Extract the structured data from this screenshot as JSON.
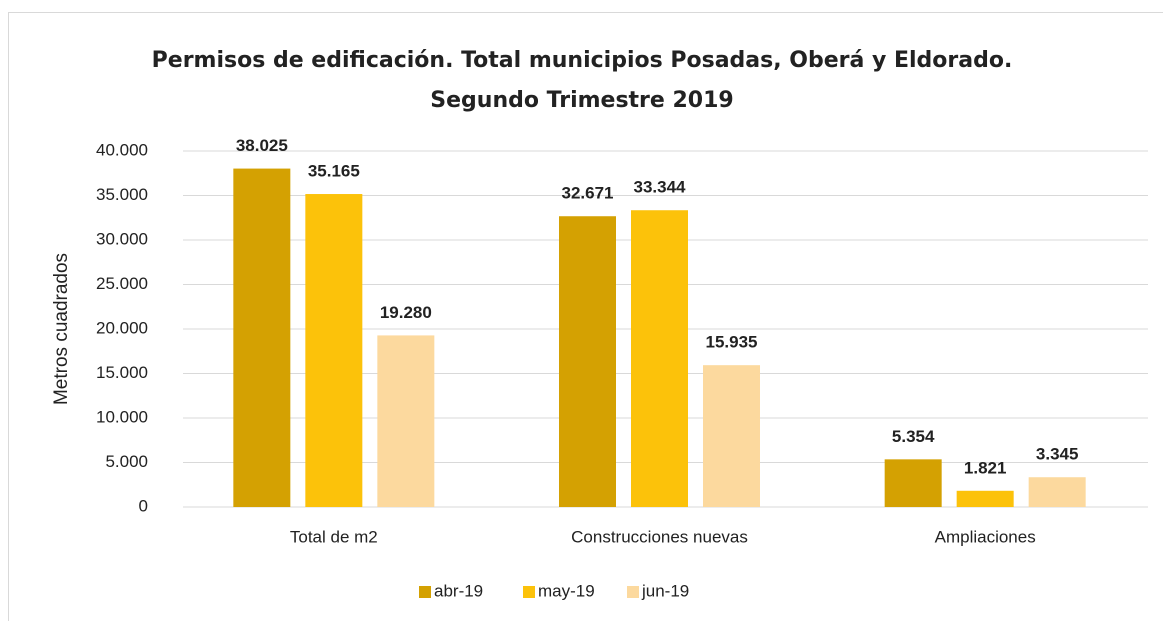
{
  "chart_data": {
    "type": "bar",
    "title": [
      "Permisos de edificación. Total municipios Posadas, Oberá y Eldorado.",
      "Segundo Trimestre 2019"
    ],
    "y_label": "Metros cuadrados",
    "categories": [
      "Total de m2",
      "Construcciones nuevas",
      "Ampliaciones"
    ],
    "series": [
      {
        "name": "abr-19",
        "color": "#d4a102",
        "values": [
          38025,
          32671,
          5354
        ],
        "value_labels": [
          "38.025",
          "32.671",
          "5.354"
        ]
      },
      {
        "name": "may-19",
        "color": "#fcc20a",
        "values": [
          35165,
          33344,
          1821
        ],
        "value_labels": [
          "35.165",
          "33.344",
          "1.821"
        ]
      },
      {
        "name": "jun-19",
        "color": "#fcd99e",
        "values": [
          19280,
          15935,
          3345
        ],
        "value_labels": [
          "19.280",
          "15.935",
          "3.345"
        ]
      }
    ],
    "ylim": [
      0,
      40000
    ],
    "yticks": [
      0,
      {
        "value": 5000,
        "label": "5.000"
      },
      {
        "value": 10000,
        "label": "10.000"
      },
      {
        "value": 15000,
        "label": "15.000"
      },
      {
        "value": 20000,
        "label": "20.000"
      },
      {
        "value": 25000,
        "label": "25.000"
      },
      {
        "value": 30000,
        "label": "30.000"
      },
      {
        "value": 35000,
        "label": "35.000"
      },
      {
        "value": 40000,
        "label": "40.000"
      }
    ],
    "grid": true,
    "legend": "bottom"
  }
}
